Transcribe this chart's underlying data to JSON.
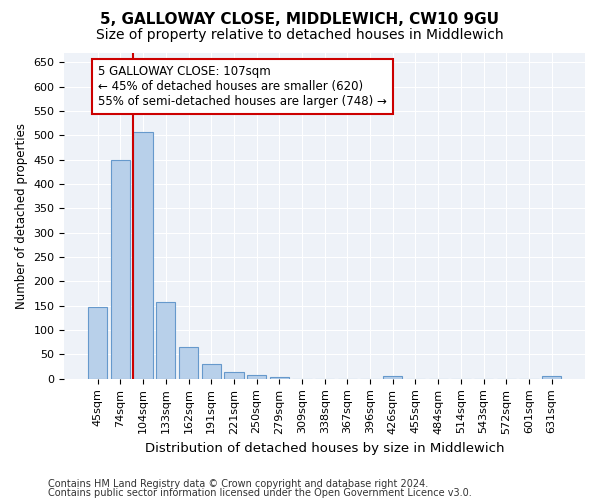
{
  "title1": "5, GALLOWAY CLOSE, MIDDLEWICH, CW10 9GU",
  "title2": "Size of property relative to detached houses in Middlewich",
  "xlabel": "Distribution of detached houses by size in Middlewich",
  "ylabel": "Number of detached properties",
  "footer1": "Contains HM Land Registry data © Crown copyright and database right 2024.",
  "footer2": "Contains public sector information licensed under the Open Government Licence v3.0.",
  "categories": [
    "45sqm",
    "74sqm",
    "104sqm",
    "133sqm",
    "162sqm",
    "191sqm",
    "221sqm",
    "250sqm",
    "279sqm",
    "309sqm",
    "338sqm",
    "367sqm",
    "396sqm",
    "426sqm",
    "455sqm",
    "484sqm",
    "514sqm",
    "543sqm",
    "572sqm",
    "601sqm",
    "631sqm"
  ],
  "values": [
    148,
    450,
    507,
    158,
    65,
    30,
    13,
    8,
    4,
    0,
    0,
    0,
    0,
    5,
    0,
    0,
    0,
    0,
    0,
    0,
    5
  ],
  "bar_color": "#b8d0ea",
  "bar_edge_color": "#6699cc",
  "annotation_text": "5 GALLOWAY CLOSE: 107sqm\n← 45% of detached houses are smaller (620)\n55% of semi-detached houses are larger (748) →",
  "vline_x": 1.575,
  "vline_color": "#cc0000",
  "box_color": "#cc0000",
  "ylim": [
    0,
    670
  ],
  "yticks": [
    0,
    50,
    100,
    150,
    200,
    250,
    300,
    350,
    400,
    450,
    500,
    550,
    600,
    650
  ],
  "background_color": "#eef2f8",
  "grid_color": "#ffffff",
  "title1_fontsize": 11,
  "title2_fontsize": 10,
  "xlabel_fontsize": 9.5,
  "ylabel_fontsize": 8.5,
  "annotation_fontsize": 8.5,
  "tick_fontsize": 8,
  "footer_fontsize": 7
}
